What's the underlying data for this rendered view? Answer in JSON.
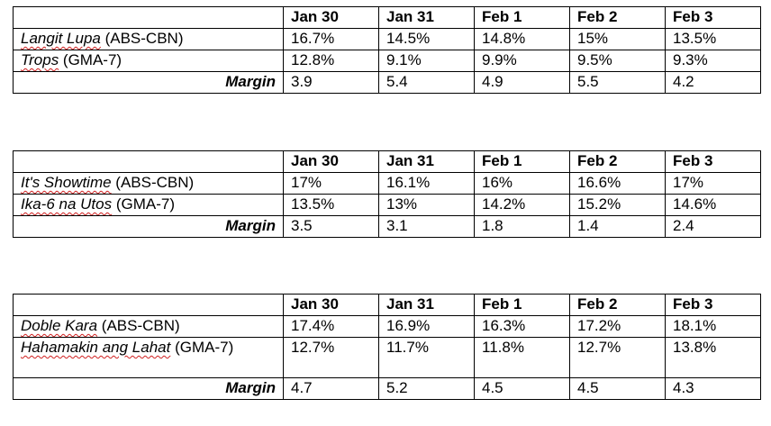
{
  "headers": [
    "",
    "Jan 30",
    "Jan 31",
    "Feb 1",
    "Feb 2",
    "Feb 3"
  ],
  "tables": [
    {
      "rows": [
        {
          "show": "Langit Lupa",
          "network": " (ABS-CBN)",
          "values": [
            "16.7%",
            "14.5%",
            "14.8%",
            "15%",
            "13.5%"
          ]
        },
        {
          "show": "Trops",
          "network": " (GMA-7)",
          "values": [
            "12.8%",
            "9.1%",
            "9.9%",
            "9.5%",
            "9.3%"
          ]
        }
      ],
      "margin": {
        "label": "Margin",
        "values": [
          "3.9",
          "5.4",
          "4.9",
          "5.5",
          "4.2"
        ]
      }
    },
    {
      "rows": [
        {
          "show": "It's Showtime",
          "network": " (ABS-CBN)",
          "values": [
            "17%",
            "16.1%",
            "16%",
            "16.6%",
            "17%"
          ]
        },
        {
          "show": "Ika-6 na Utos",
          "network": " (GMA-7)",
          "values": [
            "13.5%",
            "13%",
            "14.2%",
            "15.2%",
            "14.6%"
          ]
        }
      ],
      "margin": {
        "label": "Margin",
        "values": [
          "3.5",
          "3.1",
          "1.8",
          "1.4",
          "2.4"
        ]
      }
    },
    {
      "rows": [
        {
          "show": "Doble Kara",
          "network": " (ABS-CBN)",
          "values": [
            "17.4%",
            "16.9%",
            "16.3%",
            "17.2%",
            "18.1%"
          ]
        },
        {
          "show": "Hahamakin ang Lahat",
          "network": " (GMA-7)",
          "values": [
            "12.7%",
            "11.7%",
            "11.8%",
            "12.7%",
            "13.8%"
          ]
        }
      ],
      "margin": {
        "label": "Margin",
        "values": [
          "4.7",
          "5.2",
          "4.5",
          "4.5",
          "4.3"
        ]
      }
    }
  ]
}
